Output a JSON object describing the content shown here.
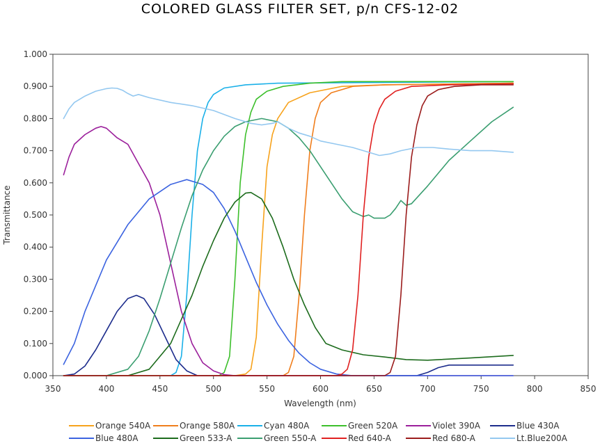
{
  "chart_data": {
    "type": "line",
    "title": "COLORED GLASS FILTER SET,  p/n CFS-12-02",
    "xlabel": "Wavelength (nm)",
    "ylabel": "Transmittance",
    "xlim": [
      350,
      850
    ],
    "ylim": [
      0,
      1.0
    ],
    "xticks": [
      350,
      400,
      450,
      500,
      550,
      600,
      650,
      700,
      750,
      800,
      850
    ],
    "yticks": [
      "0.000",
      "0.100",
      "0.200",
      "0.300",
      "0.400",
      "0.500",
      "0.600",
      "0.700",
      "0.800",
      "0.900",
      "1.000"
    ],
    "grid": false,
    "legend_position": "bottom",
    "series": [
      {
        "name": "Orange 540A",
        "color": "#f7a21b",
        "points": [
          [
            360,
            0
          ],
          [
            520,
            0
          ],
          [
            530,
            0.005
          ],
          [
            535,
            0.02
          ],
          [
            540,
            0.12
          ],
          [
            545,
            0.4
          ],
          [
            550,
            0.65
          ],
          [
            555,
            0.75
          ],
          [
            560,
            0.8
          ],
          [
            570,
            0.85
          ],
          [
            590,
            0.88
          ],
          [
            620,
            0.9
          ],
          [
            660,
            0.905
          ],
          [
            780,
            0.91
          ]
        ]
      },
      {
        "name": "Orange 580A",
        "color": "#f07e1c",
        "points": [
          [
            360,
            0
          ],
          [
            565,
            0
          ],
          [
            570,
            0.01
          ],
          [
            575,
            0.06
          ],
          [
            580,
            0.25
          ],
          [
            585,
            0.5
          ],
          [
            590,
            0.7
          ],
          [
            595,
            0.8
          ],
          [
            600,
            0.85
          ],
          [
            610,
            0.88
          ],
          [
            630,
            0.9
          ],
          [
            660,
            0.905
          ],
          [
            780,
            0.91
          ]
        ]
      },
      {
        "name": "Cyan 480A",
        "color": "#1ab0e8",
        "points": [
          [
            360,
            0
          ],
          [
            460,
            0
          ],
          [
            465,
            0.01
          ],
          [
            470,
            0.06
          ],
          [
            475,
            0.25
          ],
          [
            480,
            0.5
          ],
          [
            485,
            0.7
          ],
          [
            490,
            0.8
          ],
          [
            495,
            0.85
          ],
          [
            500,
            0.875
          ],
          [
            510,
            0.895
          ],
          [
            530,
            0.905
          ],
          [
            560,
            0.91
          ],
          [
            780,
            0.915
          ]
        ]
      },
      {
        "name": "Green 520A",
        "color": "#3cbf2b",
        "points": [
          [
            360,
            0
          ],
          [
            505,
            0
          ],
          [
            510,
            0.01
          ],
          [
            515,
            0.06
          ],
          [
            520,
            0.3
          ],
          [
            525,
            0.6
          ],
          [
            530,
            0.75
          ],
          [
            535,
            0.82
          ],
          [
            540,
            0.86
          ],
          [
            550,
            0.885
          ],
          [
            565,
            0.9
          ],
          [
            590,
            0.91
          ],
          [
            620,
            0.915
          ],
          [
            780,
            0.915
          ]
        ]
      },
      {
        "name": "Violet 390A",
        "color": "#9b1f9b",
        "points": [
          [
            360,
            0.625
          ],
          [
            365,
            0.68
          ],
          [
            370,
            0.72
          ],
          [
            380,
            0.75
          ],
          [
            390,
            0.77
          ],
          [
            395,
            0.775
          ],
          [
            400,
            0.77
          ],
          [
            410,
            0.74
          ],
          [
            420,
            0.72
          ],
          [
            430,
            0.66
          ],
          [
            440,
            0.6
          ],
          [
            450,
            0.5
          ],
          [
            460,
            0.35
          ],
          [
            470,
            0.2
          ],
          [
            480,
            0.1
          ],
          [
            490,
            0.04
          ],
          [
            500,
            0.015
          ],
          [
            510,
            0.003
          ],
          [
            520,
            0
          ],
          [
            780,
            0
          ]
        ]
      },
      {
        "name": "Blue 430A",
        "color": "#1c2c8c",
        "points": [
          [
            360,
            0
          ],
          [
            370,
            0.005
          ],
          [
            380,
            0.03
          ],
          [
            390,
            0.08
          ],
          [
            400,
            0.14
          ],
          [
            410,
            0.2
          ],
          [
            420,
            0.24
          ],
          [
            428,
            0.25
          ],
          [
            435,
            0.24
          ],
          [
            445,
            0.19
          ],
          [
            455,
            0.12
          ],
          [
            465,
            0.05
          ],
          [
            475,
            0.015
          ],
          [
            485,
            0
          ],
          [
            690,
            0
          ],
          [
            700,
            0.01
          ],
          [
            710,
            0.025
          ],
          [
            720,
            0.033
          ],
          [
            780,
            0.033
          ]
        ]
      },
      {
        "name": "Blue 480A",
        "color": "#3b63e0",
        "points": [
          [
            360,
            0.035
          ],
          [
            370,
            0.1
          ],
          [
            380,
            0.2
          ],
          [
            390,
            0.28
          ],
          [
            400,
            0.36
          ],
          [
            420,
            0.47
          ],
          [
            440,
            0.55
          ],
          [
            460,
            0.595
          ],
          [
            475,
            0.61
          ],
          [
            490,
            0.595
          ],
          [
            500,
            0.57
          ],
          [
            510,
            0.52
          ],
          [
            520,
            0.45
          ],
          [
            530,
            0.37
          ],
          [
            540,
            0.29
          ],
          [
            550,
            0.22
          ],
          [
            560,
            0.16
          ],
          [
            570,
            0.11
          ],
          [
            580,
            0.07
          ],
          [
            590,
            0.04
          ],
          [
            600,
            0.02
          ],
          [
            615,
            0.005
          ],
          [
            630,
            0
          ],
          [
            780,
            0
          ]
        ]
      },
      {
        "name": "Green 533-A",
        "color": "#1c6b1c",
        "points": [
          [
            360,
            0
          ],
          [
            420,
            0
          ],
          [
            440,
            0.02
          ],
          [
            460,
            0.1
          ],
          [
            480,
            0.25
          ],
          [
            490,
            0.34
          ],
          [
            500,
            0.42
          ],
          [
            510,
            0.49
          ],
          [
            520,
            0.54
          ],
          [
            530,
            0.568
          ],
          [
            535,
            0.57
          ],
          [
            545,
            0.55
          ],
          [
            555,
            0.49
          ],
          [
            565,
            0.4
          ],
          [
            575,
            0.3
          ],
          [
            585,
            0.22
          ],
          [
            595,
            0.15
          ],
          [
            605,
            0.1
          ],
          [
            620,
            0.08
          ],
          [
            640,
            0.065
          ],
          [
            660,
            0.058
          ],
          [
            680,
            0.05
          ],
          [
            700,
            0.048
          ],
          [
            740,
            0.055
          ],
          [
            780,
            0.063
          ]
        ]
      },
      {
        "name": "Green 550-A",
        "color": "#3a9e70",
        "points": [
          [
            360,
            0
          ],
          [
            400,
            0
          ],
          [
            420,
            0.02
          ],
          [
            430,
            0.06
          ],
          [
            440,
            0.14
          ],
          [
            450,
            0.24
          ],
          [
            460,
            0.35
          ],
          [
            470,
            0.46
          ],
          [
            480,
            0.56
          ],
          [
            490,
            0.64
          ],
          [
            500,
            0.7
          ],
          [
            510,
            0.745
          ],
          [
            520,
            0.775
          ],
          [
            530,
            0.79
          ],
          [
            545,
            0.8
          ],
          [
            560,
            0.79
          ],
          [
            570,
            0.77
          ],
          [
            580,
            0.74
          ],
          [
            590,
            0.7
          ],
          [
            600,
            0.65
          ],
          [
            610,
            0.6
          ],
          [
            620,
            0.55
          ],
          [
            630,
            0.51
          ],
          [
            640,
            0.495
          ],
          [
            645,
            0.5
          ],
          [
            650,
            0.49
          ],
          [
            660,
            0.49
          ],
          [
            665,
            0.5
          ],
          [
            670,
            0.52
          ],
          [
            675,
            0.545
          ],
          [
            680,
            0.53
          ],
          [
            685,
            0.535
          ],
          [
            700,
            0.59
          ],
          [
            720,
            0.67
          ],
          [
            740,
            0.73
          ],
          [
            760,
            0.79
          ],
          [
            780,
            0.835
          ]
        ]
      },
      {
        "name": "Red 640-A",
        "color": "#e02020",
        "points": [
          [
            360,
            0
          ],
          [
            615,
            0
          ],
          [
            620,
            0.005
          ],
          [
            625,
            0.02
          ],
          [
            630,
            0.08
          ],
          [
            635,
            0.25
          ],
          [
            640,
            0.5
          ],
          [
            645,
            0.68
          ],
          [
            650,
            0.78
          ],
          [
            655,
            0.83
          ],
          [
            660,
            0.86
          ],
          [
            670,
            0.885
          ],
          [
            685,
            0.9
          ],
          [
            720,
            0.905
          ],
          [
            780,
            0.908
          ]
        ]
      },
      {
        "name": "Red 680-A",
        "color": "#9b1c1c",
        "points": [
          [
            360,
            0
          ],
          [
            660,
            0
          ],
          [
            665,
            0.01
          ],
          [
            670,
            0.06
          ],
          [
            675,
            0.25
          ],
          [
            680,
            0.5
          ],
          [
            685,
            0.68
          ],
          [
            690,
            0.78
          ],
          [
            695,
            0.84
          ],
          [
            700,
            0.87
          ],
          [
            710,
            0.89
          ],
          [
            725,
            0.9
          ],
          [
            750,
            0.905
          ],
          [
            780,
            0.905
          ]
        ]
      },
      {
        "name": "Lt.Blue200A",
        "color": "#94c8f0",
        "points": [
          [
            360,
            0.8
          ],
          [
            365,
            0.83
          ],
          [
            370,
            0.85
          ],
          [
            380,
            0.87
          ],
          [
            390,
            0.885
          ],
          [
            400,
            0.893
          ],
          [
            405,
            0.895
          ],
          [
            410,
            0.894
          ],
          [
            415,
            0.888
          ],
          [
            420,
            0.878
          ],
          [
            425,
            0.87
          ],
          [
            430,
            0.875
          ],
          [
            440,
            0.865
          ],
          [
            460,
            0.85
          ],
          [
            480,
            0.84
          ],
          [
            500,
            0.825
          ],
          [
            520,
            0.8
          ],
          [
            535,
            0.785
          ],
          [
            545,
            0.78
          ],
          [
            555,
            0.785
          ],
          [
            560,
            0.79
          ],
          [
            570,
            0.77
          ],
          [
            580,
            0.755
          ],
          [
            590,
            0.745
          ],
          [
            600,
            0.73
          ],
          [
            615,
            0.72
          ],
          [
            630,
            0.71
          ],
          [
            645,
            0.695
          ],
          [
            655,
            0.685
          ],
          [
            665,
            0.69
          ],
          [
            675,
            0.7
          ],
          [
            690,
            0.71
          ],
          [
            705,
            0.71
          ],
          [
            720,
            0.705
          ],
          [
            740,
            0.7
          ],
          [
            760,
            0.7
          ],
          [
            780,
            0.695
          ]
        ]
      }
    ]
  }
}
